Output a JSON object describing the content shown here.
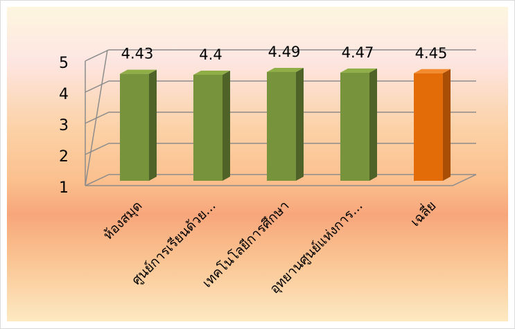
{
  "chart_data": {
    "type": "bar",
    "style": "3d-column",
    "categories": [
      "ห้องสมุด",
      "ศูนย์การเรียนด้วย...",
      "เทคโนโลยีการศึกษา",
      "อุทยานศูนย์แห่งการ...",
      "เฉลี่ย"
    ],
    "values": [
      4.43,
      4.4,
      4.49,
      4.47,
      4.45
    ],
    "value_labels": [
      "4.43",
      "4.4",
      "4.49",
      "4.47",
      "4.45"
    ],
    "ylim": [
      1,
      5
    ],
    "yticks": [
      "1",
      "2",
      "3",
      "4",
      "5"
    ],
    "grid": true,
    "legend": "none",
    "colors": {
      "bar_front": "#77933c",
      "bar_side": "#4f6228",
      "bar_top": "#8fae48",
      "highlight_front": "#e36c09",
      "highlight_side": "#a94f05",
      "highlight_top": "#f38a2e",
      "gridline": "#8c8c8c",
      "text": "#000000"
    },
    "highlight_index": 4
  }
}
